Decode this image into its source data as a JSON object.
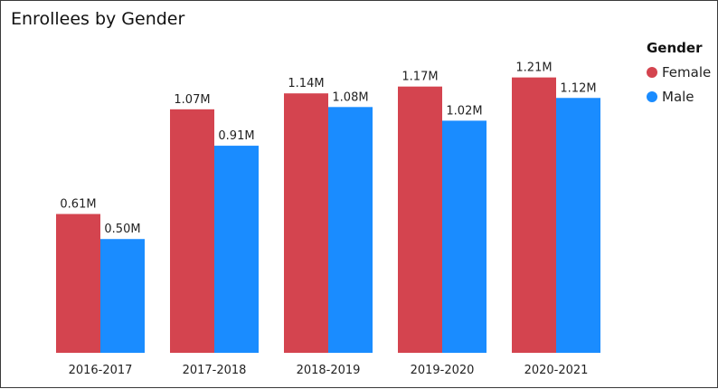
{
  "title": "Enrollees by Gender",
  "legend": {
    "title": "Gender",
    "items": [
      {
        "label": "Female",
        "color": "#d4444f"
      },
      {
        "label": "Male",
        "color": "#1a8cff"
      }
    ]
  },
  "chart_data": {
    "type": "bar",
    "title": "Enrollees by Gender",
    "xlabel": "",
    "ylabel": "",
    "categories": [
      "2016-2017",
      "2017-2018",
      "2018-2019",
      "2019-2020",
      "2020-2021"
    ],
    "series": [
      {
        "name": "Female",
        "color": "#d4444f",
        "values": [
          0.61,
          1.07,
          1.14,
          1.17,
          1.21
        ],
        "labels": [
          "0.61M",
          "1.07M",
          "1.14M",
          "1.17M",
          "1.21M"
        ]
      },
      {
        "name": "Male",
        "color": "#1a8cff",
        "values": [
          0.5,
          0.91,
          1.08,
          1.02,
          1.12
        ],
        "labels": [
          "0.50M",
          "0.91M",
          "1.08M",
          "1.02M",
          "1.12M"
        ]
      }
    ],
    "ylim": [
      0,
      1.28
    ],
    "grid": false,
    "legend_position": "top-right",
    "data_labels": true
  }
}
